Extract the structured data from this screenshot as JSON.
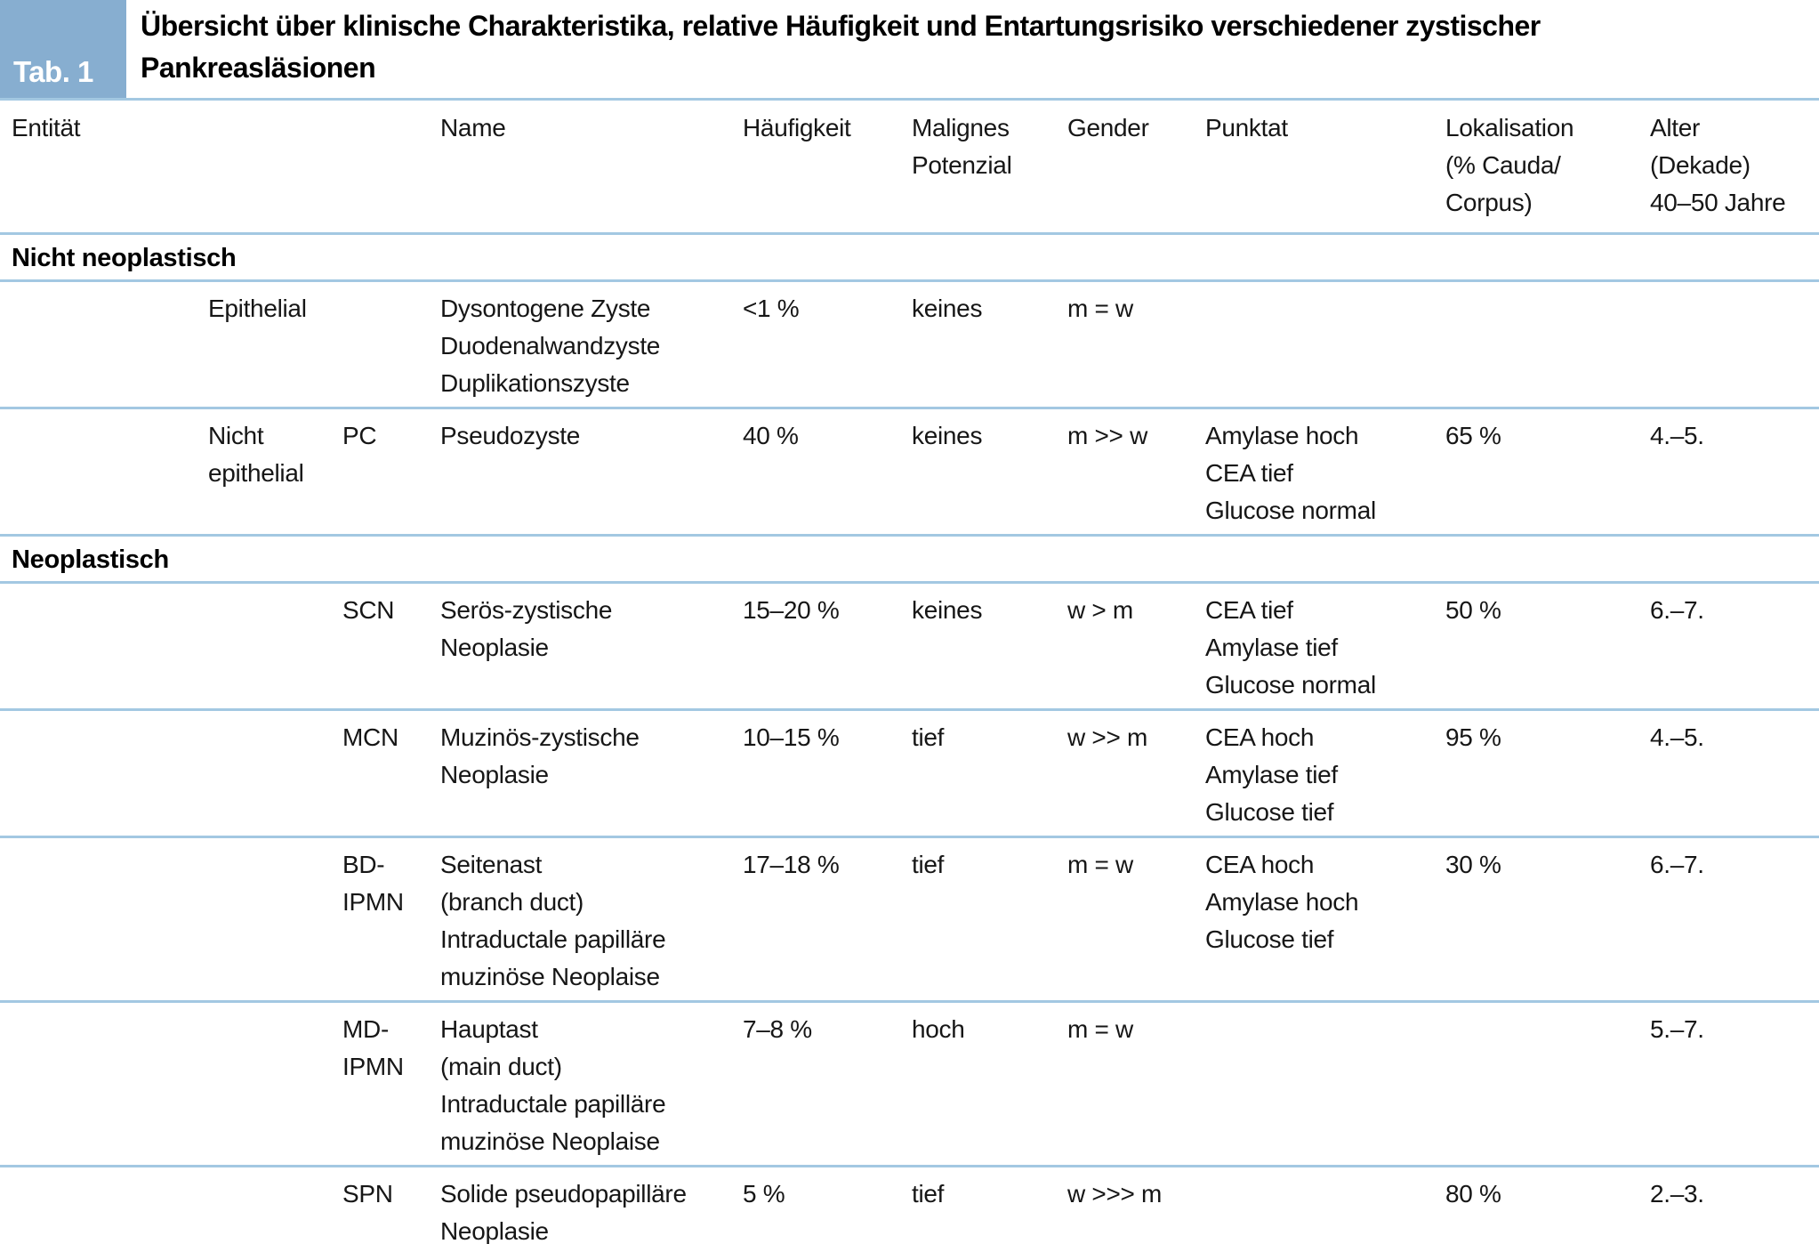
{
  "figure": {
    "badge_label": "Tab. 1",
    "title": "Übersicht über klinische Charakteristika, relative Häufigkeit und Entartungsrisiko verschiedener zystischer\nPankreasläsionen",
    "accent_color": "#87aed0",
    "divider_color": "#a3c8e2"
  },
  "table": {
    "columns": [
      "Entität",
      "",
      "",
      "Name",
      "Häufigkeit",
      "Malignes\nPotenzial",
      "Gender",
      "Punktat",
      "Lokalisation\n(% Cauda/\nCorpus)",
      "Alter\n(Dekade)\n40–50 Jahre"
    ],
    "sections": [
      {
        "label": "Nicht neoplastisch",
        "rows": [
          {
            "cells": [
              "",
              "Epithelial",
              "",
              "Dysontogene Zyste\nDuodenalwandzyste\nDuplikationszyste",
              "<1 %",
              "keines",
              "m = w",
              "",
              "",
              ""
            ]
          },
          {
            "cells": [
              "",
              "Nicht\nepithelial",
              "PC",
              "Pseudozyste",
              "40 %",
              "keines",
              "m >> w",
              "Amylase hoch\nCEA tief\nGlucose normal",
              "65 %",
              "4.–5."
            ]
          }
        ]
      },
      {
        "label": "Neoplastisch",
        "rows": [
          {
            "cells": [
              "",
              "",
              "SCN",
              "Serös-zystische\nNeoplasie",
              "15–20 %",
              "keines",
              "w > m",
              "CEA tief\nAmylase tief\nGlucose normal",
              "50 %",
              "6.–7."
            ]
          },
          {
            "cells": [
              "",
              "",
              "MCN",
              "Muzinös-zystische\nNeoplasie",
              "10–15 %",
              "tief",
              "w >> m",
              "CEA hoch\nAmylase tief\nGlucose tief",
              "95 %",
              "4.–5."
            ]
          },
          {
            "cells": [
              "",
              "",
              "BD-\nIPMN",
              "Seitenast\n(branch duct)\nIntraductale papilläre\nmuzinöse Neoplaise",
              "17–18 %",
              "tief",
              "m = w",
              "CEA hoch\nAmylase hoch\nGlucose tief",
              "30 %",
              "6.–7."
            ]
          },
          {
            "cells": [
              "",
              "",
              "MD-\nIPMN",
              "Hauptast\n(main duct)\nIntraductale papilläre\nmuzinöse Neoplaise",
              "7–8 %",
              "hoch",
              "m = w",
              "",
              "",
              "5.–7."
            ]
          },
          {
            "cells": [
              "",
              "",
              "SPN",
              "Solide pseudopapilläre\nNeoplasie",
              "5 %",
              "tief",
              "w >>> m",
              "",
              "80 %",
              "2.–3."
            ]
          }
        ]
      }
    ]
  }
}
